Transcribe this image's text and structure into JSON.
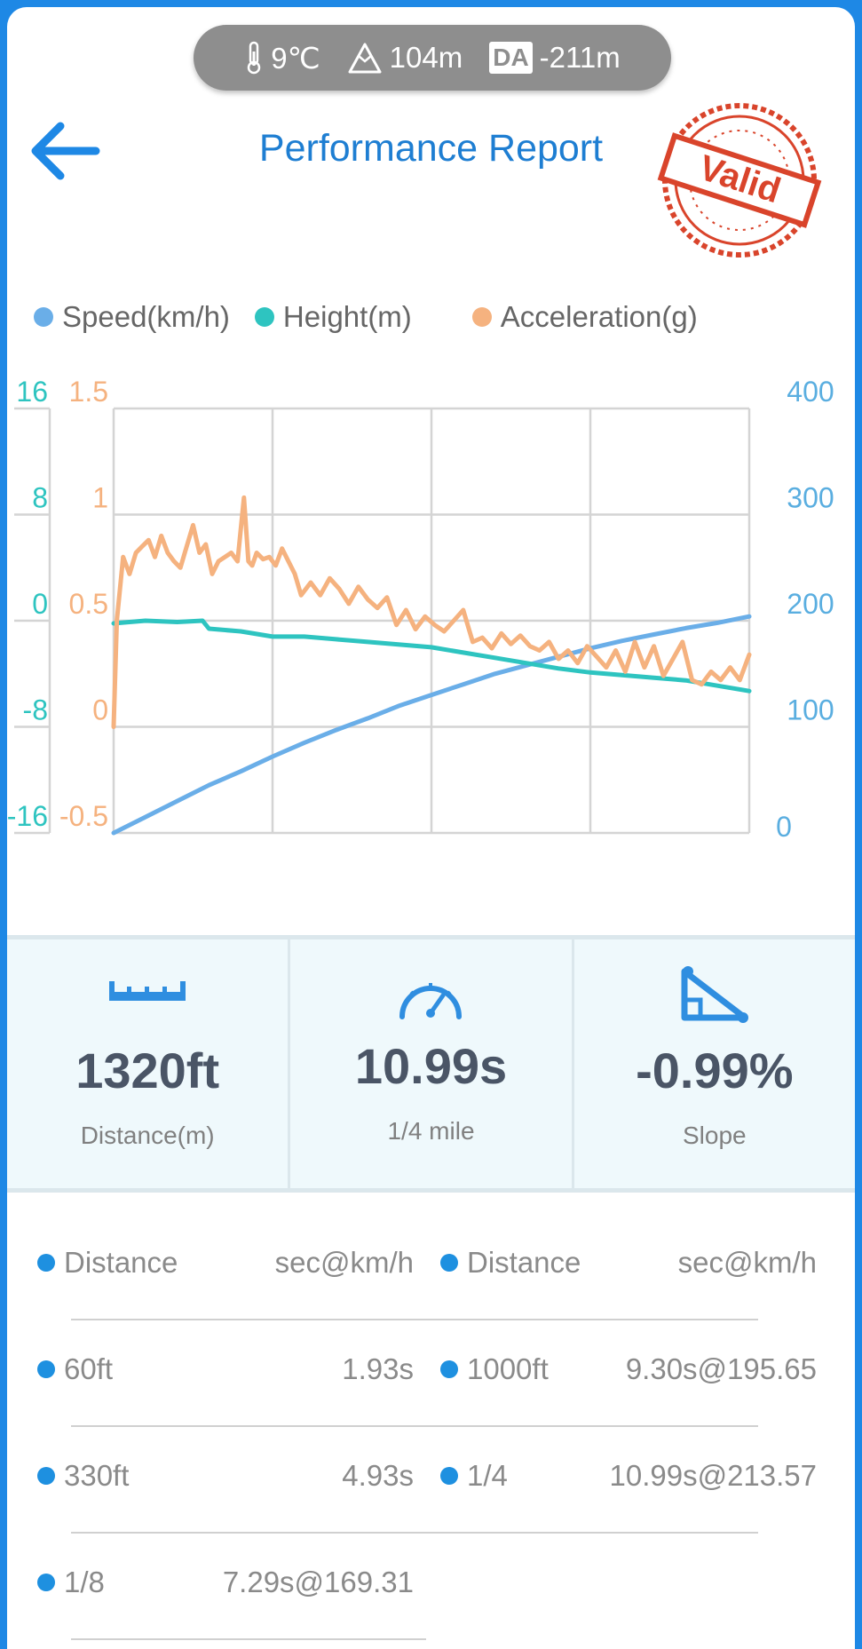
{
  "status": {
    "temperature": "9℃",
    "altitude": "104m",
    "da_label": "DA",
    "density_altitude": "-211m"
  },
  "header": {
    "title": "Performance Report",
    "stamp_text": "Valid"
  },
  "legend": [
    {
      "label": "Speed(km/h)",
      "color": "#6aaee8"
    },
    {
      "label": "Height(m)",
      "color": "#2ec4c0"
    },
    {
      "label": "Acceleration(g)",
      "color": "#f5b27f"
    }
  ],
  "chart_data": {
    "type": "line",
    "x_range": [
      0,
      1
    ],
    "axes": {
      "height": {
        "ticks": [
          "16",
          "8",
          "0",
          "-8",
          "-16"
        ],
        "range": [
          -16,
          16
        ],
        "color": "#2ec4c0"
      },
      "acceleration": {
        "ticks": [
          "1.5",
          "1",
          "0.5",
          "0",
          "-0.5"
        ],
        "range": [
          -0.5,
          1.5
        ],
        "color": "#f5b27f"
      },
      "speed": {
        "ticks": [
          "400",
          "300",
          "200",
          "100",
          "0"
        ],
        "range": [
          0,
          400
        ],
        "color": "#5aaee0"
      }
    },
    "grid": true,
    "series": [
      {
        "name": "Speed(km/h)",
        "axis": "speed",
        "color": "#6aaee8",
        "x": [
          0,
          0.05,
          0.1,
          0.15,
          0.2,
          0.25,
          0.3,
          0.35,
          0.4,
          0.45,
          0.5,
          0.55,
          0.6,
          0.65,
          0.7,
          0.75,
          0.8,
          0.85,
          0.9,
          0.95,
          1.0
        ],
        "y": [
          0,
          15,
          30,
          45,
          58,
          72,
          85,
          97,
          108,
          120,
          130,
          140,
          150,
          158,
          166,
          174,
          181,
          187,
          193,
          198,
          204
        ]
      },
      {
        "name": "Height(m)",
        "axis": "height",
        "color": "#2ec4c0",
        "x": [
          0,
          0.05,
          0.1,
          0.14,
          0.15,
          0.2,
          0.25,
          0.3,
          0.35,
          0.4,
          0.45,
          0.5,
          0.55,
          0.6,
          0.65,
          0.7,
          0.75,
          0.8,
          0.85,
          0.9,
          0.95,
          1.0
        ],
        "y": [
          -0.2,
          0.0,
          -0.1,
          0.0,
          -0.6,
          -0.8,
          -1.2,
          -1.2,
          -1.4,
          -1.6,
          -1.8,
          -2.0,
          -2.4,
          -2.8,
          -3.2,
          -3.6,
          -3.9,
          -4.1,
          -4.3,
          -4.5,
          -4.9,
          -5.3
        ]
      },
      {
        "name": "Acceleration(g)",
        "axis": "acceleration",
        "color": "#f5b27f",
        "x": [
          0,
          0.005,
          0.015,
          0.025,
          0.035,
          0.045,
          0.055,
          0.065,
          0.075,
          0.085,
          0.095,
          0.105,
          0.115,
          0.125,
          0.135,
          0.145,
          0.155,
          0.165,
          0.175,
          0.185,
          0.195,
          0.205,
          0.212,
          0.218,
          0.225,
          0.235,
          0.245,
          0.255,
          0.265,
          0.275,
          0.285,
          0.295,
          0.31,
          0.325,
          0.34,
          0.355,
          0.37,
          0.385,
          0.4,
          0.415,
          0.43,
          0.445,
          0.46,
          0.475,
          0.49,
          0.505,
          0.52,
          0.535,
          0.55,
          0.565,
          0.58,
          0.595,
          0.61,
          0.625,
          0.64,
          0.655,
          0.67,
          0.685,
          0.7,
          0.715,
          0.73,
          0.745,
          0.76,
          0.775,
          0.79,
          0.805,
          0.82,
          0.835,
          0.85,
          0.865,
          0.88,
          0.895,
          0.91,
          0.925,
          0.94,
          0.955,
          0.97,
          0.985,
          1.0
        ],
        "y": [
          0,
          0.5,
          0.8,
          0.72,
          0.82,
          0.85,
          0.88,
          0.8,
          0.9,
          0.82,
          0.78,
          0.75,
          0.85,
          0.95,
          0.82,
          0.86,
          0.72,
          0.78,
          0.8,
          0.82,
          0.78,
          1.08,
          0.78,
          0.76,
          0.82,
          0.79,
          0.8,
          0.76,
          0.84,
          0.78,
          0.72,
          0.62,
          0.68,
          0.62,
          0.7,
          0.65,
          0.58,
          0.66,
          0.6,
          0.56,
          0.61,
          0.48,
          0.55,
          0.46,
          0.52,
          0.48,
          0.45,
          0.5,
          0.55,
          0.4,
          0.42,
          0.37,
          0.44,
          0.39,
          0.43,
          0.38,
          0.36,
          0.4,
          0.32,
          0.36,
          0.3,
          0.38,
          0.33,
          0.28,
          0.36,
          0.26,
          0.4,
          0.28,
          0.38,
          0.24,
          0.32,
          0.4,
          0.22,
          0.2,
          0.26,
          0.22,
          0.28,
          0.22,
          0.34
        ]
      }
    ]
  },
  "stats": [
    {
      "icon": "ruler-icon",
      "value": "1320ft",
      "label": "Distance(m)"
    },
    {
      "icon": "speedometer-icon",
      "value": "10.99s",
      "label": "1/4 mile"
    },
    {
      "icon": "slope-icon",
      "value": "-0.99%",
      "label": "Slope"
    }
  ],
  "results": {
    "header": {
      "col1": "Distance",
      "col2": "sec@km/h",
      "col3": "Distance",
      "col4": "sec@km/h"
    },
    "rows": [
      {
        "left_label": "60ft",
        "left_value": "1.93s",
        "right_label": "1000ft",
        "right_value": "9.30s@195.65"
      },
      {
        "left_label": "330ft",
        "left_value": "4.93s",
        "right_label": "1/4",
        "right_value": "10.99s@213.57"
      },
      {
        "left_label": "1/8",
        "left_value": "7.29s@169.31",
        "right_label": "",
        "right_value": ""
      }
    ]
  },
  "colors": {
    "accent": "#1e7ed2",
    "bullet": "#1e90e0",
    "stamp": "#d9442b"
  }
}
